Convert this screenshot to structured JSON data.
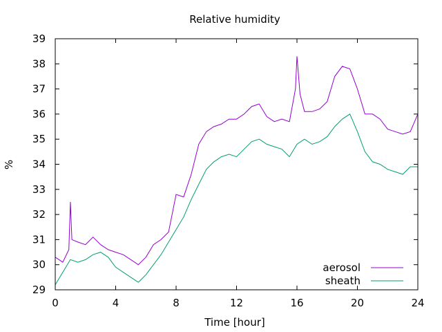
{
  "chart_data": {
    "type": "line",
    "title": "Relative humidity",
    "xlabel": "Time [hour]",
    "ylabel": "%",
    "xlim": [
      0,
      24
    ],
    "ylim": [
      29,
      39
    ],
    "xticks": [
      0,
      4,
      8,
      12,
      16,
      20,
      24
    ],
    "yticks": [
      29,
      30,
      31,
      32,
      33,
      34,
      35,
      36,
      37,
      38,
      39
    ],
    "grid": false,
    "legend_position": "bottom-right",
    "series": [
      {
        "name": "aerosol",
        "color": "#9400d3",
        "x": [
          0,
          0.5,
          0.9,
          1.0,
          1.1,
          1.5,
          2.0,
          2.5,
          3.0,
          3.5,
          4.0,
          4.5,
          5.0,
          5.5,
          6.0,
          6.5,
          7.0,
          7.5,
          8.0,
          8.5,
          9.0,
          9.5,
          10.0,
          10.5,
          11.0,
          11.5,
          12.0,
          12.5,
          13.0,
          13.5,
          14.0,
          14.5,
          15.0,
          15.5,
          15.9,
          16.0,
          16.2,
          16.5,
          17.0,
          17.5,
          18.0,
          18.5,
          19.0,
          19.5,
          20.0,
          20.5,
          21.0,
          21.5,
          22.0,
          22.5,
          23.0,
          23.5,
          24.0
        ],
        "y": [
          30.3,
          30.1,
          30.6,
          32.5,
          31.0,
          30.9,
          30.8,
          31.1,
          30.8,
          30.6,
          30.5,
          30.4,
          30.2,
          30.0,
          30.3,
          30.8,
          31.0,
          31.3,
          32.8,
          32.7,
          33.6,
          34.8,
          35.3,
          35.5,
          35.6,
          35.8,
          35.8,
          36.0,
          36.3,
          36.4,
          35.9,
          35.7,
          35.8,
          35.7,
          37.0,
          38.3,
          36.8,
          36.1,
          36.1,
          36.2,
          36.5,
          37.5,
          37.9,
          37.8,
          37.0,
          36.0,
          36.0,
          35.8,
          35.4,
          35.3,
          35.2,
          35.3,
          36.0
        ]
      },
      {
        "name": "sheath",
        "color": "#009e73",
        "x": [
          0,
          0.5,
          1.0,
          1.5,
          2.0,
          2.5,
          3.0,
          3.5,
          4.0,
          4.5,
          5.0,
          5.5,
          6.0,
          6.5,
          7.0,
          7.5,
          8.0,
          8.5,
          9.0,
          9.5,
          10.0,
          10.5,
          11.0,
          11.5,
          12.0,
          12.5,
          13.0,
          13.5,
          14.0,
          14.5,
          15.0,
          15.5,
          16.0,
          16.5,
          17.0,
          17.5,
          18.0,
          18.5,
          19.0,
          19.5,
          20.0,
          20.5,
          21.0,
          21.5,
          22.0,
          22.5,
          23.0,
          23.5,
          24.0
        ],
        "y": [
          29.2,
          29.7,
          30.2,
          30.1,
          30.2,
          30.4,
          30.5,
          30.3,
          29.9,
          29.7,
          29.5,
          29.3,
          29.6,
          30.0,
          30.4,
          30.9,
          31.4,
          31.9,
          32.6,
          33.2,
          33.8,
          34.1,
          34.3,
          34.4,
          34.3,
          34.6,
          34.9,
          35.0,
          34.8,
          34.7,
          34.6,
          34.3,
          34.8,
          35.0,
          34.8,
          34.9,
          35.1,
          35.5,
          35.8,
          36.0,
          35.3,
          34.5,
          34.1,
          34.0,
          33.8,
          33.7,
          33.6,
          33.9,
          33.9
        ]
      }
    ]
  }
}
